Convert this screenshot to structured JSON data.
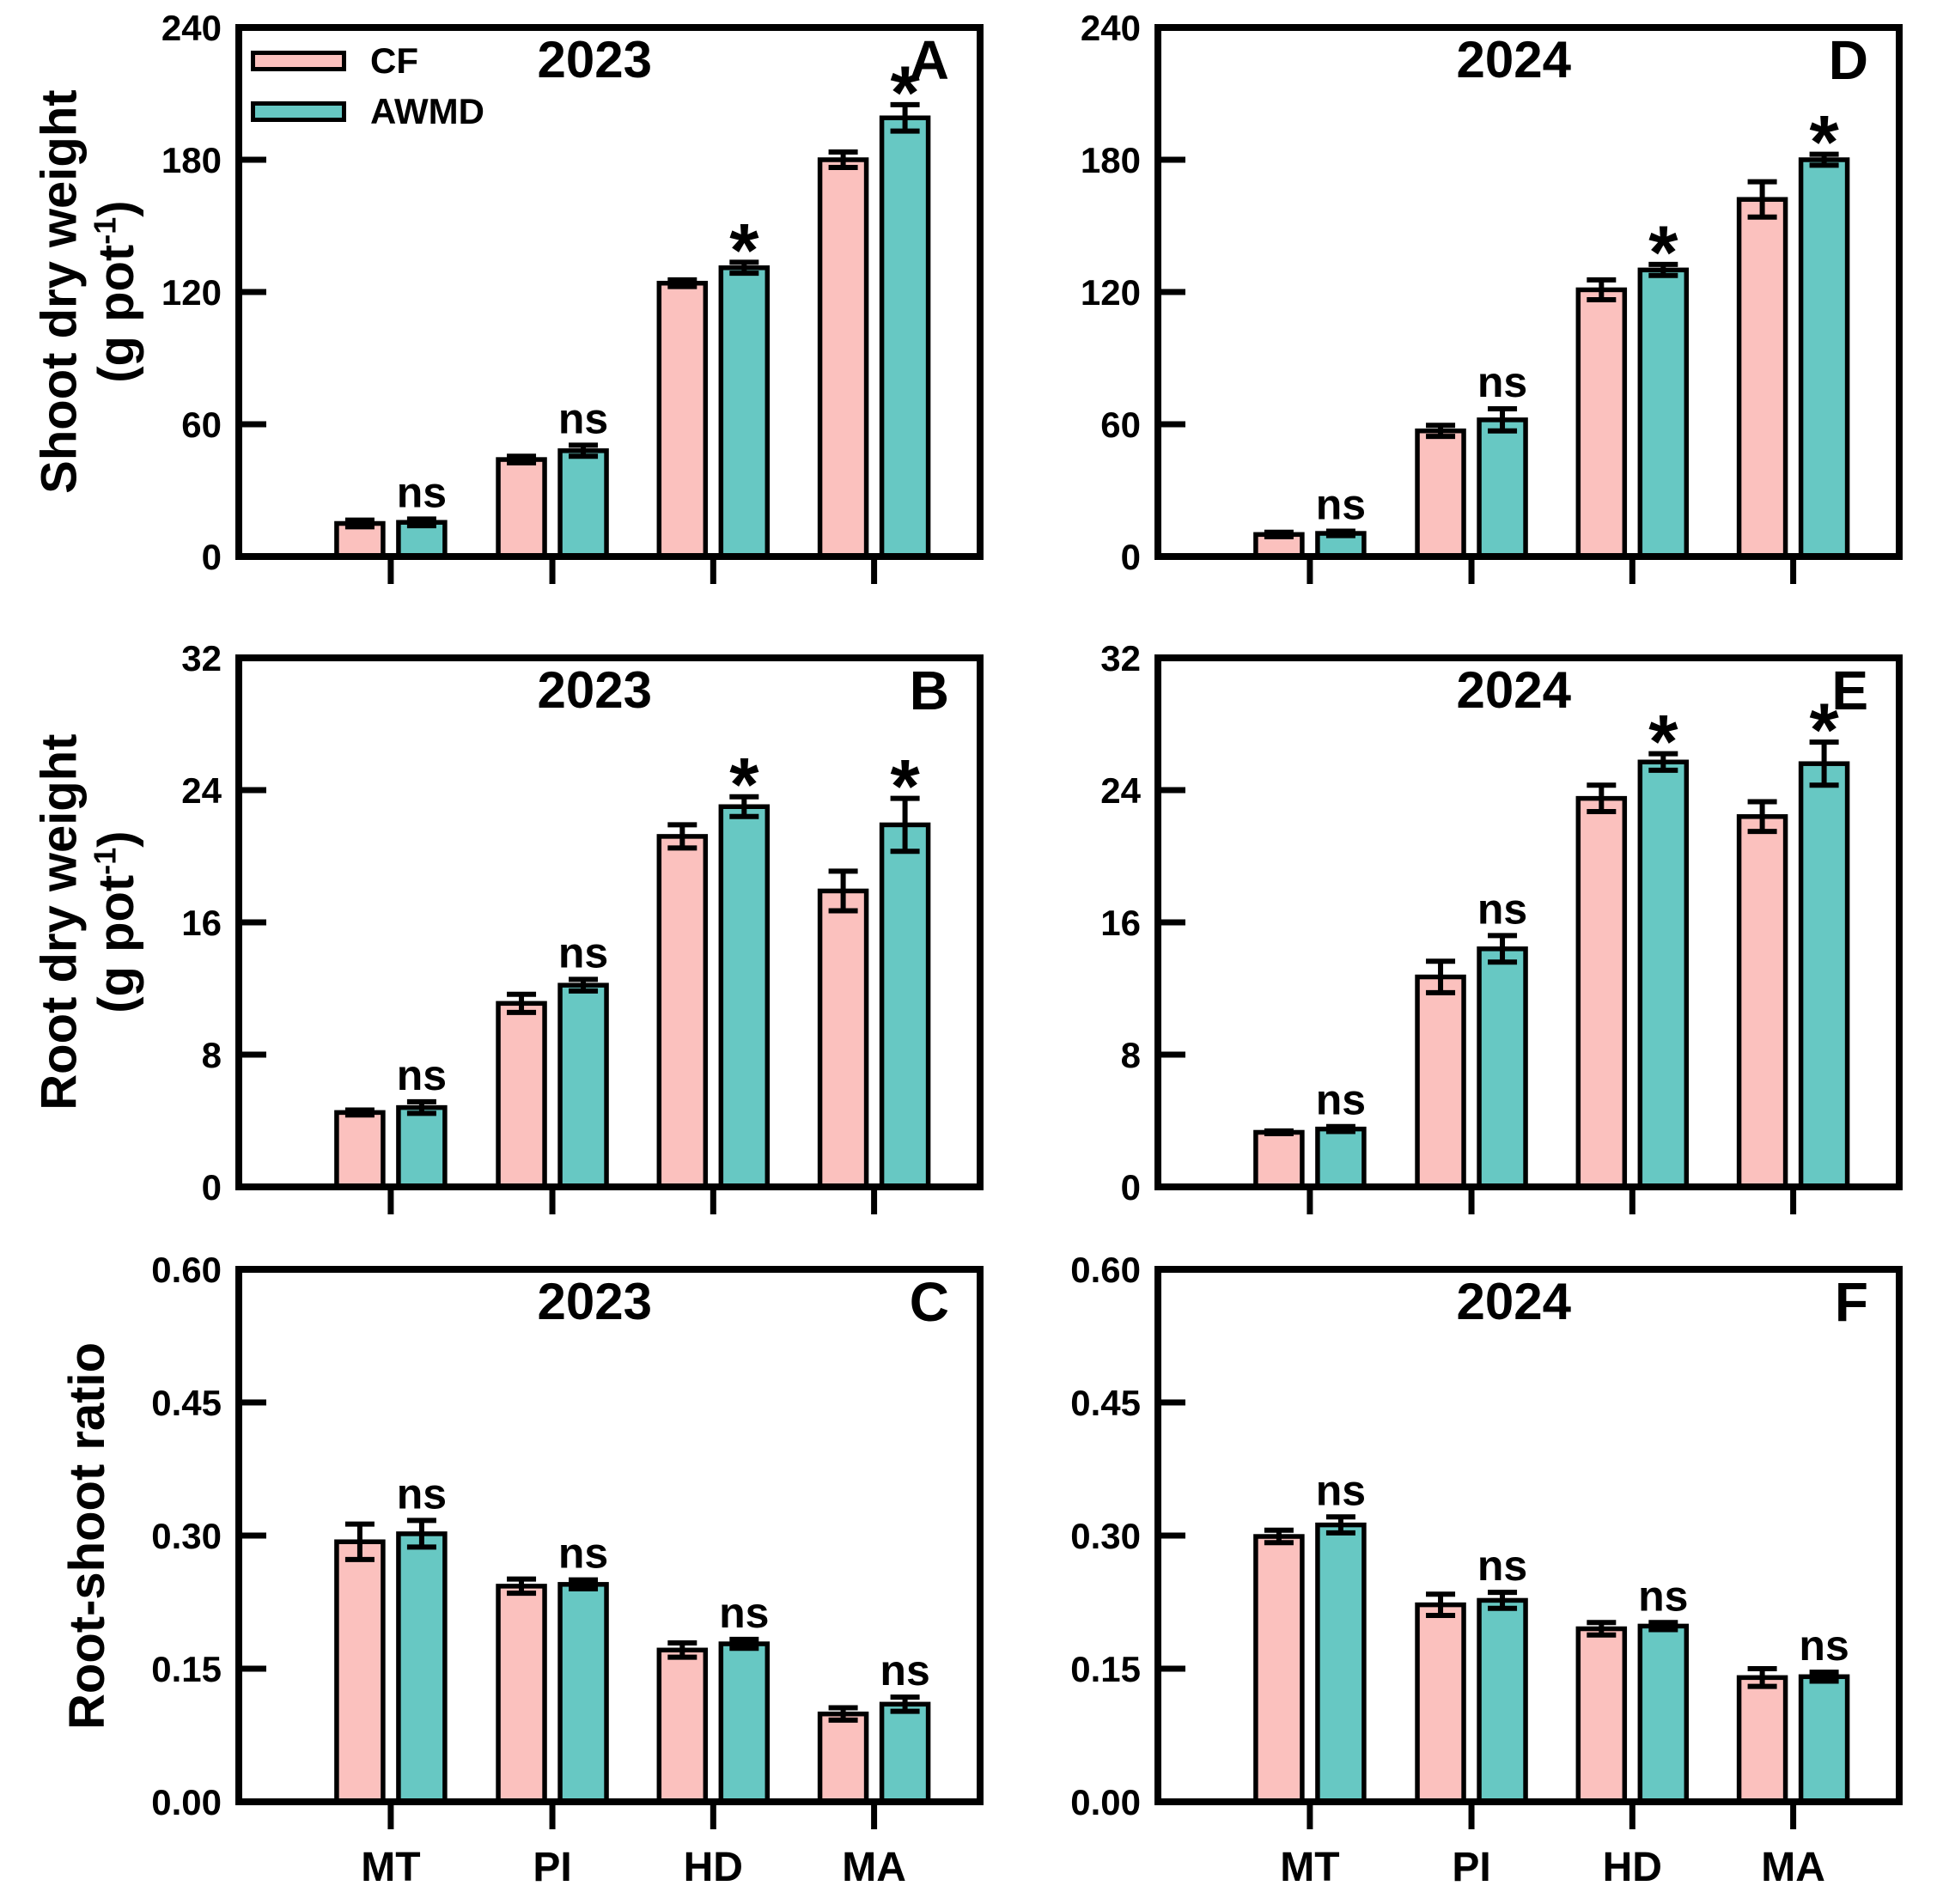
{
  "legend": {
    "items": [
      {
        "label": "CF",
        "color": "#FBC1BE"
      },
      {
        "label": "AWMD",
        "color": "#67C8C3"
      }
    ]
  },
  "axis_labels": {
    "row1_line1": "Shoot dry weight",
    "row2_line1": "Root dry weight",
    "unit_prefix": "(g pot",
    "unit_sup": "-1",
    "unit_suffix": ")",
    "row3_line1": "Root-shoot ratio"
  },
  "chart_data": [
    {
      "type": "bar",
      "panel": "A",
      "year": "2023",
      "row": 0,
      "col": 0,
      "ylabel": "Shoot dry weight (g pot-1)",
      "ylim": [
        0,
        240
      ],
      "yticks": [
        "0",
        "60",
        "120",
        "180",
        "240"
      ],
      "categories": [
        "MT",
        "PI",
        "HD",
        "MA"
      ],
      "series": [
        {
          "name": "CF",
          "values": [
            15,
            44,
            124,
            180
          ],
          "errors": [
            1.5,
            1.5,
            1.5,
            3.5
          ]
        },
        {
          "name": "AWMD",
          "values": [
            15.5,
            48,
            131,
            199
          ],
          "errors": [
            1.5,
            2.5,
            2.5,
            6
          ]
        }
      ],
      "significance": [
        "ns",
        "ns",
        "*",
        "*"
      ],
      "legend": true,
      "legend_position": "top-left",
      "grid": false
    },
    {
      "type": "bar",
      "panel": "D",
      "year": "2024",
      "row": 0,
      "col": 1,
      "ylabel": "Shoot dry weight (g pot-1)",
      "ylim": [
        0,
        240
      ],
      "yticks": [
        "0",
        "60",
        "120",
        "180",
        "240"
      ],
      "categories": [
        "MT",
        "PI",
        "HD",
        "MA"
      ],
      "series": [
        {
          "name": "CF",
          "values": [
            10,
            57,
            121,
            162
          ],
          "errors": [
            1,
            2.5,
            4.5,
            8
          ]
        },
        {
          "name": "AWMD",
          "values": [
            10.5,
            62,
            130,
            180
          ],
          "errors": [
            1,
            5,
            2.5,
            2.5
          ]
        }
      ],
      "significance": [
        "ns",
        "ns",
        "*",
        "*"
      ],
      "legend": false,
      "grid": false
    },
    {
      "type": "bar",
      "panel": "B",
      "year": "2023",
      "row": 1,
      "col": 0,
      "ylabel": "Root dry weight (g pot-1)",
      "ylim": [
        0,
        32
      ],
      "yticks": [
        "0",
        "8",
        "16",
        "24",
        "32"
      ],
      "categories": [
        "MT",
        "PI",
        "HD",
        "MA"
      ],
      "series": [
        {
          "name": "CF",
          "values": [
            4.5,
            11.1,
            21.2,
            17.9
          ],
          "errors": [
            0.15,
            0.55,
            0.7,
            1.2
          ]
        },
        {
          "name": "AWMD",
          "values": [
            4.8,
            12.2,
            23.0,
            21.9
          ],
          "errors": [
            0.35,
            0.35,
            0.6,
            1.6
          ]
        }
      ],
      "significance": [
        "ns",
        "ns",
        "*",
        "*"
      ],
      "legend": false,
      "grid": false
    },
    {
      "type": "bar",
      "panel": "E",
      "year": "2024",
      "row": 1,
      "col": 1,
      "ylabel": "Root dry weight (g pot-1)",
      "ylim": [
        0,
        32
      ],
      "yticks": [
        "0",
        "8",
        "16",
        "24",
        "32"
      ],
      "categories": [
        "MT",
        "PI",
        "HD",
        "MA"
      ],
      "series": [
        {
          "name": "CF",
          "values": [
            3.3,
            12.7,
            23.5,
            22.4
          ],
          "errors": [
            0.08,
            0.95,
            0.8,
            0.9
          ]
        },
        {
          "name": "AWMD",
          "values": [
            3.5,
            14.4,
            25.7,
            25.6
          ],
          "errors": [
            0.15,
            0.8,
            0.5,
            1.3
          ]
        }
      ],
      "significance": [
        "ns",
        "ns",
        "*",
        "*"
      ],
      "legend": false,
      "grid": false
    },
    {
      "type": "bar",
      "panel": "C",
      "year": "2023",
      "row": 2,
      "col": 0,
      "ylabel": "Root-shoot ratio",
      "ylim": [
        0,
        0.6
      ],
      "yticks": [
        "0.00",
        "0.15",
        "0.30",
        "0.45",
        "0.60"
      ],
      "categories": [
        "MT",
        "PI",
        "HD",
        "MA"
      ],
      "series": [
        {
          "name": "CF",
          "values": [
            0.293,
            0.243,
            0.171,
            0.099
          ],
          "errors": [
            0.02,
            0.008,
            0.008,
            0.007
          ]
        },
        {
          "name": "AWMD",
          "values": [
            0.302,
            0.245,
            0.178,
            0.11
          ],
          "errors": [
            0.015,
            0.005,
            0.005,
            0.008
          ]
        }
      ],
      "significance": [
        "ns",
        "ns",
        "ns",
        "ns"
      ],
      "legend": false,
      "grid": false
    },
    {
      "type": "bar",
      "panel": "F",
      "year": "2024",
      "row": 2,
      "col": 1,
      "ylabel": "Root-shoot ratio",
      "ylim": [
        0,
        0.6
      ],
      "yticks": [
        "0.00",
        "0.15",
        "0.30",
        "0.45",
        "0.60"
      ],
      "categories": [
        "MT",
        "PI",
        "HD",
        "MA"
      ],
      "series": [
        {
          "name": "CF",
          "values": [
            0.299,
            0.222,
            0.195,
            0.14
          ],
          "errors": [
            0.007,
            0.012,
            0.007,
            0.01
          ]
        },
        {
          "name": "AWMD",
          "values": [
            0.312,
            0.227,
            0.198,
            0.141
          ],
          "errors": [
            0.009,
            0.009,
            0.004,
            0.005
          ]
        }
      ],
      "significance": [
        "ns",
        "ns",
        "ns",
        "ns"
      ],
      "legend": false,
      "grid": false
    }
  ]
}
